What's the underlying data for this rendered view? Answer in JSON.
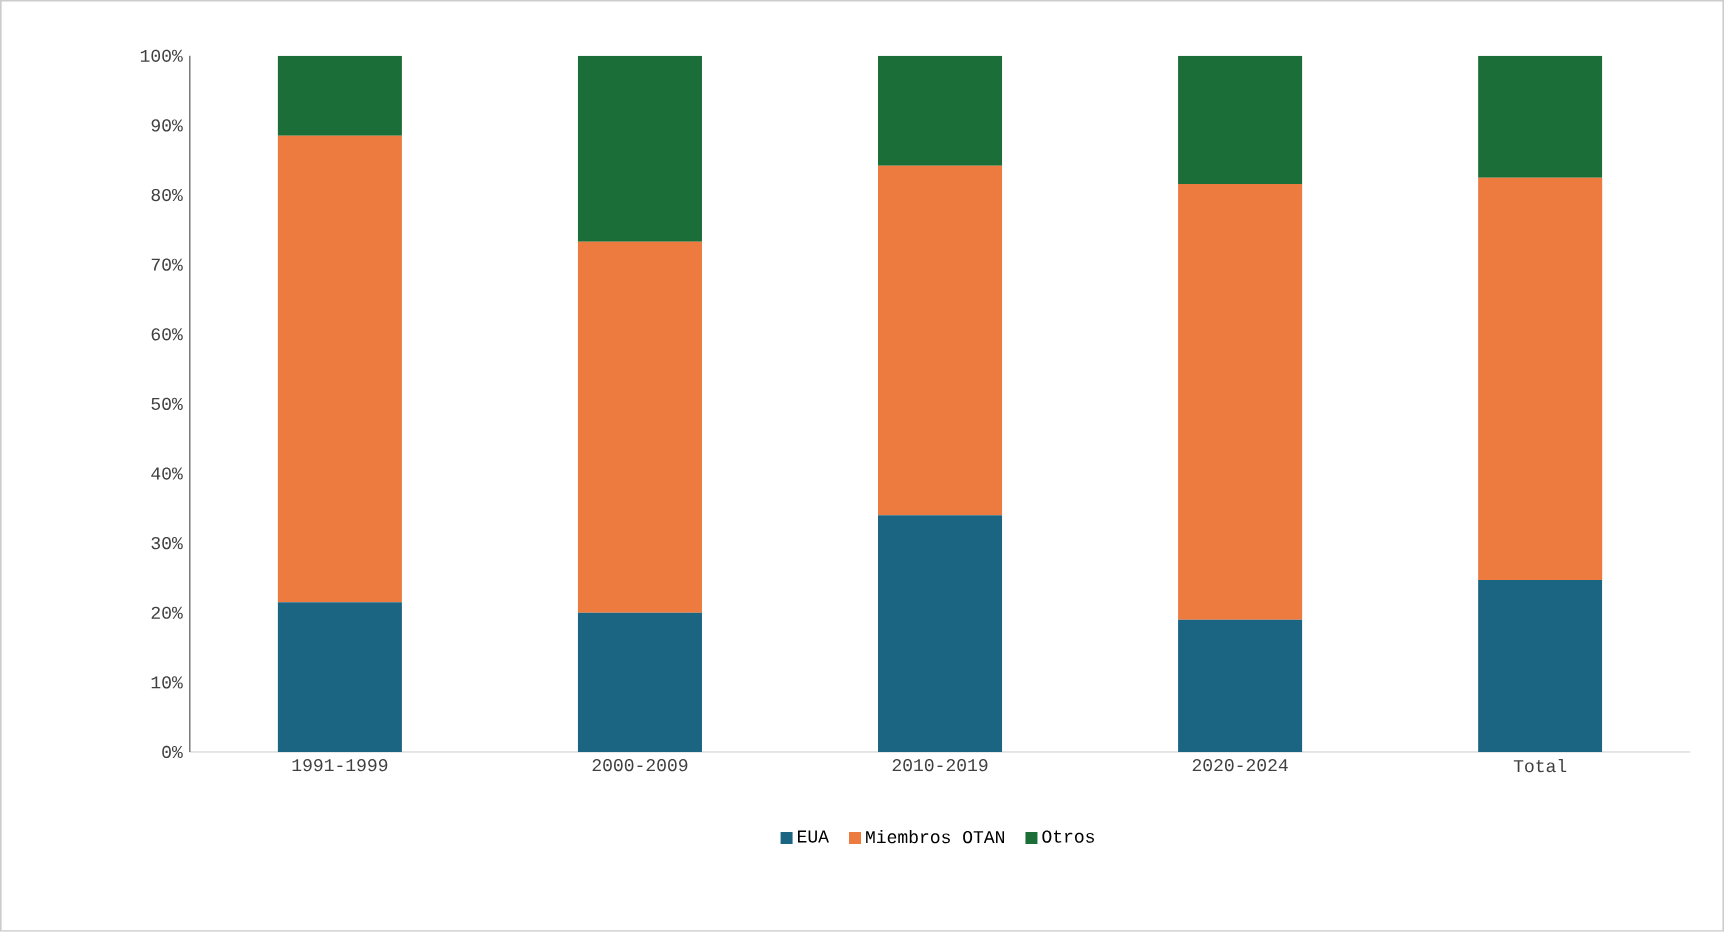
{
  "chart_data": {
    "type": "bar",
    "stacked": true,
    "categories": [
      "1991-1999",
      "2000-2009",
      "2010-2019",
      "2020-2024",
      "Total"
    ],
    "series": [
      {
        "name": "EUA",
        "color": "#1b6482",
        "values": [
          21.5,
          20,
          34,
          19,
          24.7
        ]
      },
      {
        "name": "Miembros OTAN",
        "color": "#ed7b3f",
        "values": [
          67,
          53.3,
          50.2,
          62.6,
          57.8
        ]
      },
      {
        "name": "Otros",
        "color": "#1b6e37",
        "values": [
          11.5,
          26.7,
          15.8,
          18.4,
          17.5
        ]
      }
    ],
    "ylim": [
      0,
      100
    ],
    "yticks": [
      {
        "value": 0,
        "label": "0%"
      },
      {
        "value": 10,
        "label": "10%"
      },
      {
        "value": 20,
        "label": "20%"
      },
      {
        "value": 30,
        "label": "30%"
      },
      {
        "value": 40,
        "label": "40%"
      },
      {
        "value": 50,
        "label": "50%"
      },
      {
        "value": 60,
        "label": "60%"
      },
      {
        "value": 70,
        "label": "70%"
      },
      {
        "value": 80,
        "label": "80%"
      },
      {
        "value": 90,
        "label": "90%"
      },
      {
        "value": 100,
        "label": "100%"
      }
    ],
    "grid": false,
    "legend": "bottom"
  }
}
